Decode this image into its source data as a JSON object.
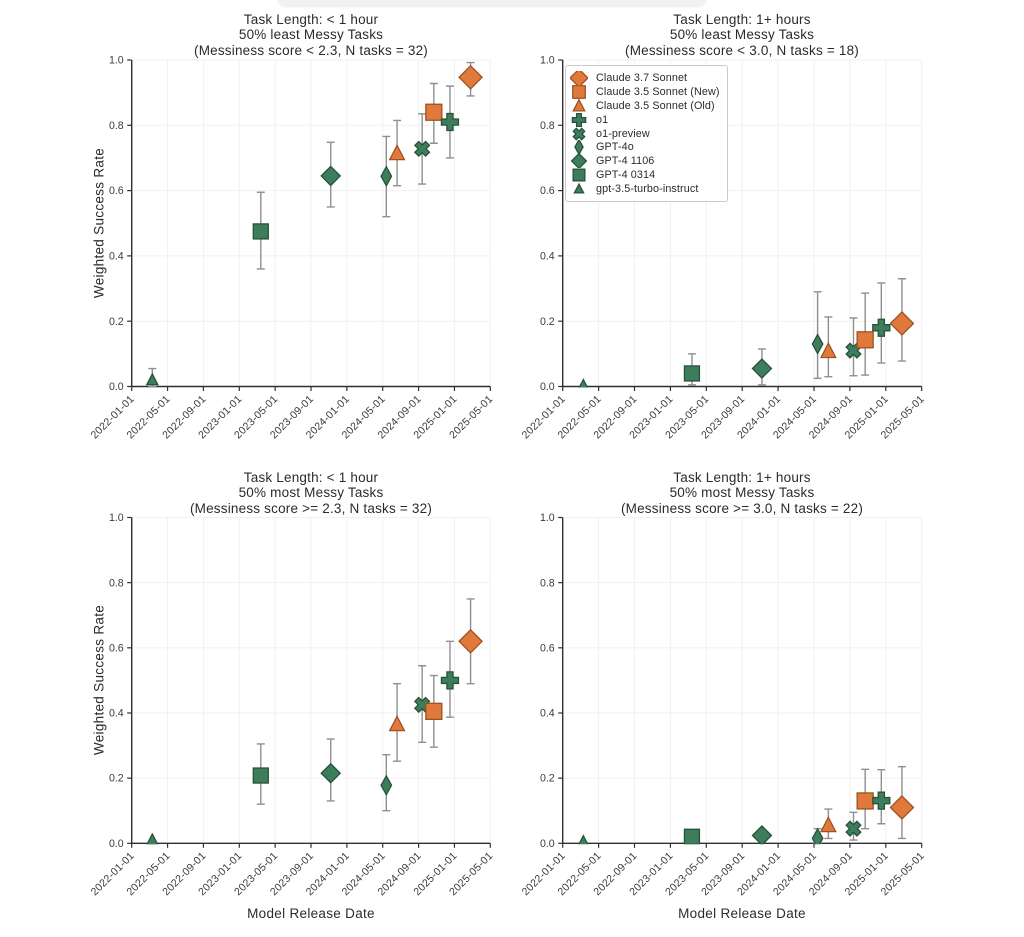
{
  "colors": {
    "orange_fill": "#E1793C",
    "orange_edge": "#9C5220",
    "green_fill": "#3E7D5B",
    "green_edge": "#26523C",
    "errorbar": "#8F8F8F",
    "axis": "#2F2F2F",
    "grid": "#F1F1F1",
    "tick_text": "#3B3B3B",
    "title_text": "#2B2B2B",
    "background": "#FFFFFF"
  },
  "models": [
    {
      "id": "claude-3.7-sonnet",
      "label": "Claude 3.7 Sonnet",
      "color": "orange",
      "marker": "diamond",
      "x_months": 37.8
    },
    {
      "id": "claude-3.5-sonnet-new",
      "label": "Claude 3.5 Sonnet (New)",
      "color": "orange",
      "marker": "square",
      "x_months": 33.7
    },
    {
      "id": "claude-3.5-sonnet-old",
      "label": "Claude 3.5 Sonnet (Old)",
      "color": "orange",
      "marker": "triangle",
      "x_months": 29.6
    },
    {
      "id": "o1",
      "label": "o1",
      "color": "green",
      "marker": "plus",
      "x_months": 35.5
    },
    {
      "id": "o1-preview",
      "label": "o1-preview",
      "color": "green",
      "marker": "x",
      "x_months": 32.4
    },
    {
      "id": "gpt-4o",
      "label": "GPT-4o",
      "color": "green",
      "marker": "thin-diamond",
      "x_months": 28.4
    },
    {
      "id": "gpt-4-1106",
      "label": "GPT-4 1106",
      "color": "green",
      "marker": "diamond",
      "x_months": 22.2
    },
    {
      "id": "gpt-4-0314",
      "label": "GPT-4 0314",
      "color": "green",
      "marker": "square",
      "x_months": 14.4
    },
    {
      "id": "gpt-3.5-turbo-instruct",
      "label": "gpt-3.5-turbo-instruct",
      "color": "green",
      "marker": "triangle",
      "x_months": 2.3
    }
  ],
  "axes": {
    "xlabel": "Model Release Date",
    "ylabel": "Weighted Success Rate",
    "yticks": [
      "0.0",
      "0.2",
      "0.4",
      "0.6",
      "0.8",
      "1.0"
    ],
    "xticks": [
      "2022-01-01",
      "2022-05-01",
      "2022-09-01",
      "2023-01-01",
      "2023-05-01",
      "2023-09-01",
      "2024-01-01",
      "2024-05-01",
      "2024-09-01",
      "2025-01-01",
      "2025-05-01"
    ],
    "x_range_months": [
      0,
      40
    ],
    "ylim": [
      0,
      1
    ],
    "grid": true
  },
  "chart_data": [
    {
      "id": "top-left",
      "type": "scatter",
      "title_lines": [
        "Task Length: < 1 hour",
        "50% least Messy Tasks",
        "(Messiness score < 2.3, N tasks = 32)"
      ],
      "points": [
        {
          "model": "gpt-3.5-turbo-instruct",
          "y": 0.02,
          "lo": 0.0,
          "hi": 0.055
        },
        {
          "model": "gpt-4-0314",
          "y": 0.475,
          "lo": 0.36,
          "hi": 0.595
        },
        {
          "model": "gpt-4-1106",
          "y": 0.645,
          "lo": 0.55,
          "hi": 0.748
        },
        {
          "model": "gpt-4o",
          "y": 0.644,
          "lo": 0.52,
          "hi": 0.766
        },
        {
          "model": "claude-3.5-sonnet-old",
          "y": 0.714,
          "lo": 0.615,
          "hi": 0.815
        },
        {
          "model": "o1-preview",
          "y": 0.728,
          "lo": 0.62,
          "hi": 0.835
        },
        {
          "model": "claude-3.5-sonnet-new",
          "y": 0.84,
          "lo": 0.745,
          "hi": 0.928
        },
        {
          "model": "o1",
          "y": 0.81,
          "lo": 0.7,
          "hi": 0.92
        },
        {
          "model": "claude-3.7-sonnet",
          "y": 0.947,
          "lo": 0.89,
          "hi": 0.992
        }
      ]
    },
    {
      "id": "top-right",
      "type": "scatter",
      "title_lines": [
        "Task Length: 1+ hours",
        "50% least Messy Tasks",
        "(Messiness score < 3.0, N tasks = 18)"
      ],
      "points": [
        {
          "model": "gpt-3.5-turbo-instruct",
          "y": 0.003,
          "lo": null,
          "hi": null
        },
        {
          "model": "gpt-4-0314",
          "y": 0.04,
          "lo": 0.005,
          "hi": 0.1
        },
        {
          "model": "gpt-4-1106",
          "y": 0.055,
          "lo": 0.005,
          "hi": 0.115
        },
        {
          "model": "gpt-4o",
          "y": 0.13,
          "lo": 0.025,
          "hi": 0.29
        },
        {
          "model": "claude-3.5-sonnet-old",
          "y": 0.108,
          "lo": 0.03,
          "hi": 0.213
        },
        {
          "model": "o1-preview",
          "y": 0.11,
          "lo": 0.033,
          "hi": 0.21
        },
        {
          "model": "claude-3.5-sonnet-new",
          "y": 0.143,
          "lo": 0.035,
          "hi": 0.286
        },
        {
          "model": "o1",
          "y": 0.18,
          "lo": 0.072,
          "hi": 0.317
        },
        {
          "model": "claude-3.7-sonnet",
          "y": 0.193,
          "lo": 0.078,
          "hi": 0.33
        }
      ]
    },
    {
      "id": "bottom-left",
      "type": "scatter",
      "title_lines": [
        "Task Length: < 1 hour",
        "50% most Messy Tasks",
        "(Messiness score >= 2.3, N tasks = 32)"
      ],
      "points": [
        {
          "model": "gpt-3.5-turbo-instruct",
          "y": 0.01,
          "lo": null,
          "hi": null
        },
        {
          "model": "gpt-4-0314",
          "y": 0.208,
          "lo": 0.12,
          "hi": 0.305
        },
        {
          "model": "gpt-4-1106",
          "y": 0.215,
          "lo": 0.13,
          "hi": 0.32
        },
        {
          "model": "gpt-4o",
          "y": 0.178,
          "lo": 0.1,
          "hi": 0.272
        },
        {
          "model": "claude-3.5-sonnet-old",
          "y": 0.365,
          "lo": 0.252,
          "hi": 0.49
        },
        {
          "model": "o1-preview",
          "y": 0.425,
          "lo": 0.31,
          "hi": 0.545
        },
        {
          "model": "claude-3.5-sonnet-new",
          "y": 0.405,
          "lo": 0.295,
          "hi": 0.515
        },
        {
          "model": "o1",
          "y": 0.5,
          "lo": 0.387,
          "hi": 0.62
        },
        {
          "model": "claude-3.7-sonnet",
          "y": 0.62,
          "lo": 0.49,
          "hi": 0.75
        }
      ]
    },
    {
      "id": "bottom-right",
      "type": "scatter",
      "title_lines": [
        "Task Length: 1+ hours",
        "50% most Messy Tasks",
        "(Messiness score >= 3.0, N tasks = 22)"
      ],
      "points": [
        {
          "model": "gpt-3.5-turbo-instruct",
          "y": 0.005,
          "lo": null,
          "hi": null
        },
        {
          "model": "gpt-4-0314",
          "y": 0.02,
          "lo": null,
          "hi": null
        },
        {
          "model": "gpt-4-1106",
          "y": 0.024,
          "lo": null,
          "hi": null
        },
        {
          "model": "gpt-4o",
          "y": 0.015,
          "lo": 0.0,
          "hi": 0.045
        },
        {
          "model": "claude-3.5-sonnet-old",
          "y": 0.055,
          "lo": 0.015,
          "hi": 0.105
        },
        {
          "model": "o1-preview",
          "y": 0.045,
          "lo": 0.01,
          "hi": 0.095
        },
        {
          "model": "claude-3.5-sonnet-new",
          "y": 0.13,
          "lo": 0.045,
          "hi": 0.227
        },
        {
          "model": "o1",
          "y": 0.131,
          "lo": 0.06,
          "hi": 0.226
        },
        {
          "model": "claude-3.7-sonnet",
          "y": 0.11,
          "lo": 0.015,
          "hi": 0.235
        }
      ]
    }
  ]
}
